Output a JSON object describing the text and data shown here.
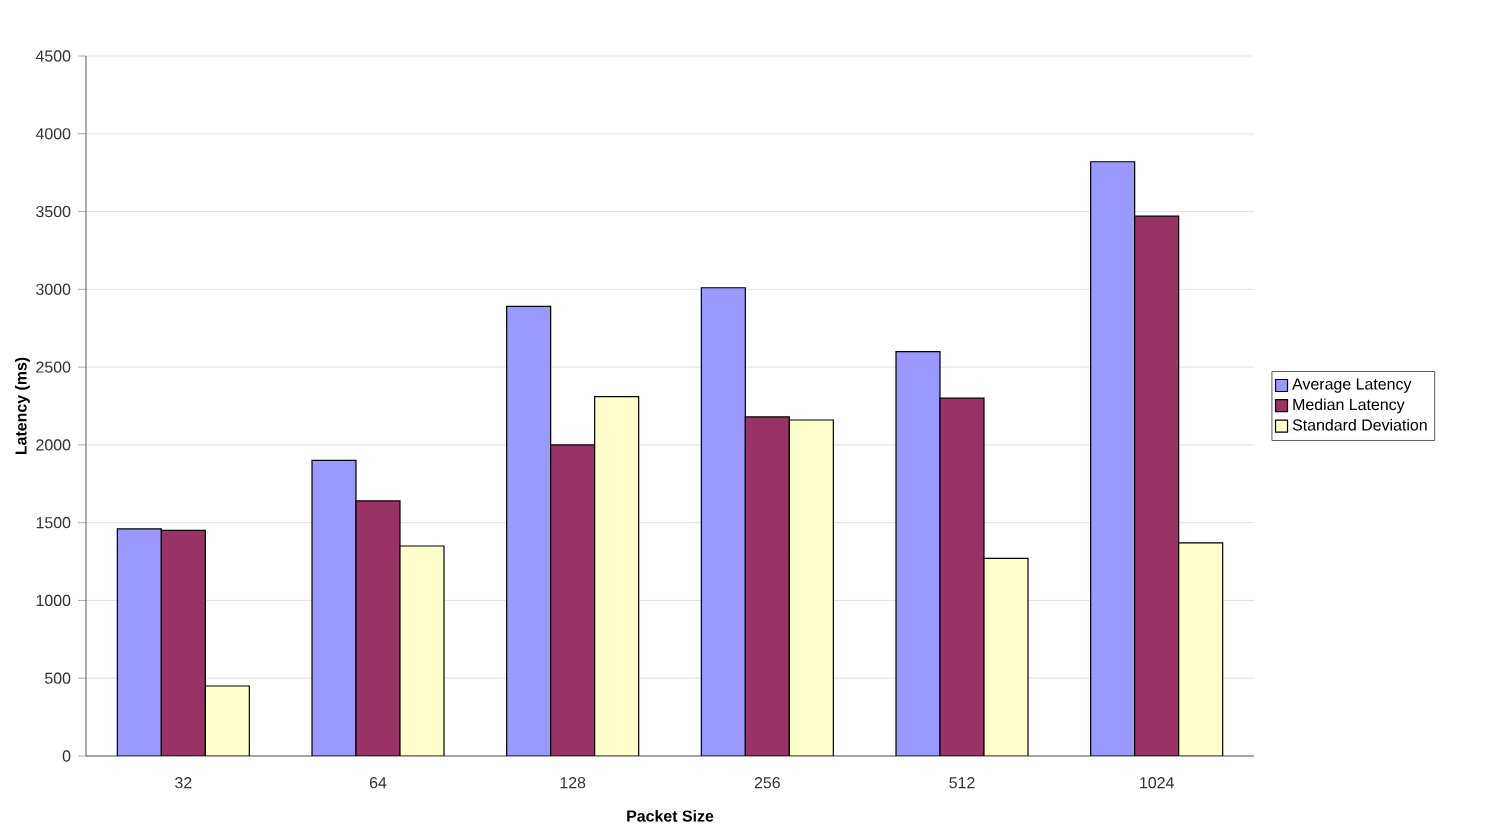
{
  "chart_data": {
    "type": "bar",
    "xlabel": "Packet Size",
    "ylabel": "Latency (ms)",
    "categories": [
      "32",
      "64",
      "128",
      "256",
      "512",
      "1024"
    ],
    "series": [
      {
        "name": "Average Latency",
        "color": "#9999ff",
        "values": [
          1460,
          1900,
          2890,
          3010,
          2600,
          3820
        ]
      },
      {
        "name": "Median Latency",
        "color": "#993366",
        "values": [
          1450,
          1640,
          2000,
          2180,
          2300,
          3470
        ]
      },
      {
        "name": "Standard Deviation",
        "color": "#ffffcc",
        "values": [
          450,
          1350,
          2310,
          2160,
          1270,
          1370
        ]
      }
    ],
    "ylim": [
      0,
      4500
    ],
    "yticks": [
      0,
      500,
      1000,
      1500,
      2000,
      2500,
      3000,
      3500,
      4000,
      4500
    ],
    "grid": "y",
    "legend": "right"
  }
}
